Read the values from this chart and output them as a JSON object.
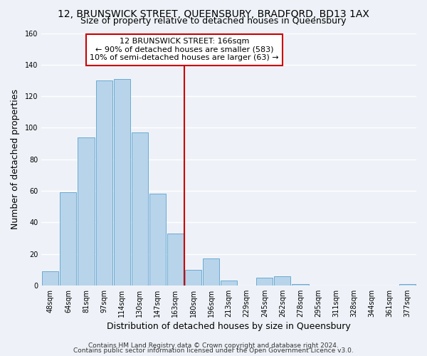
{
  "title": "12, BRUNSWICK STREET, QUEENSBURY, BRADFORD, BD13 1AX",
  "subtitle": "Size of property relative to detached houses in Queensbury",
  "xlabel": "Distribution of detached houses by size in Queensbury",
  "ylabel": "Number of detached properties",
  "bar_labels": [
    "48sqm",
    "64sqm",
    "81sqm",
    "97sqm",
    "114sqm",
    "130sqm",
    "147sqm",
    "163sqm",
    "180sqm",
    "196sqm",
    "213sqm",
    "229sqm",
    "245sqm",
    "262sqm",
    "278sqm",
    "295sqm",
    "311sqm",
    "328sqm",
    "344sqm",
    "361sqm",
    "377sqm"
  ],
  "bar_values": [
    9,
    59,
    94,
    130,
    131,
    97,
    58,
    33,
    10,
    17,
    3,
    0,
    5,
    6,
    1,
    0,
    0,
    0,
    0,
    0,
    1
  ],
  "bar_color": "#b8d4ea",
  "bar_edge_color": "#6aaad4",
  "vline_x": 7.5,
  "vline_color": "#cc0000",
  "annotation_line1": "12 BRUNSWICK STREET: 166sqm",
  "annotation_line2": "← 90% of detached houses are smaller (583)",
  "annotation_line3": "10% of semi-detached houses are larger (63) →",
  "box_edge_color": "#cc0000",
  "ylim": [
    0,
    160
  ],
  "yticks": [
    0,
    20,
    40,
    60,
    80,
    100,
    120,
    140,
    160
  ],
  "footer1": "Contains HM Land Registry data © Crown copyright and database right 2024.",
  "footer2": "Contains public sector information licensed under the Open Government Licence v3.0.",
  "background_color": "#eef2f8",
  "grid_color": "#ffffff",
  "title_fontsize": 10,
  "subtitle_fontsize": 9,
  "axis_label_fontsize": 9,
  "tick_fontsize": 7,
  "annotation_fontsize": 8,
  "footer_fontsize": 6.5
}
